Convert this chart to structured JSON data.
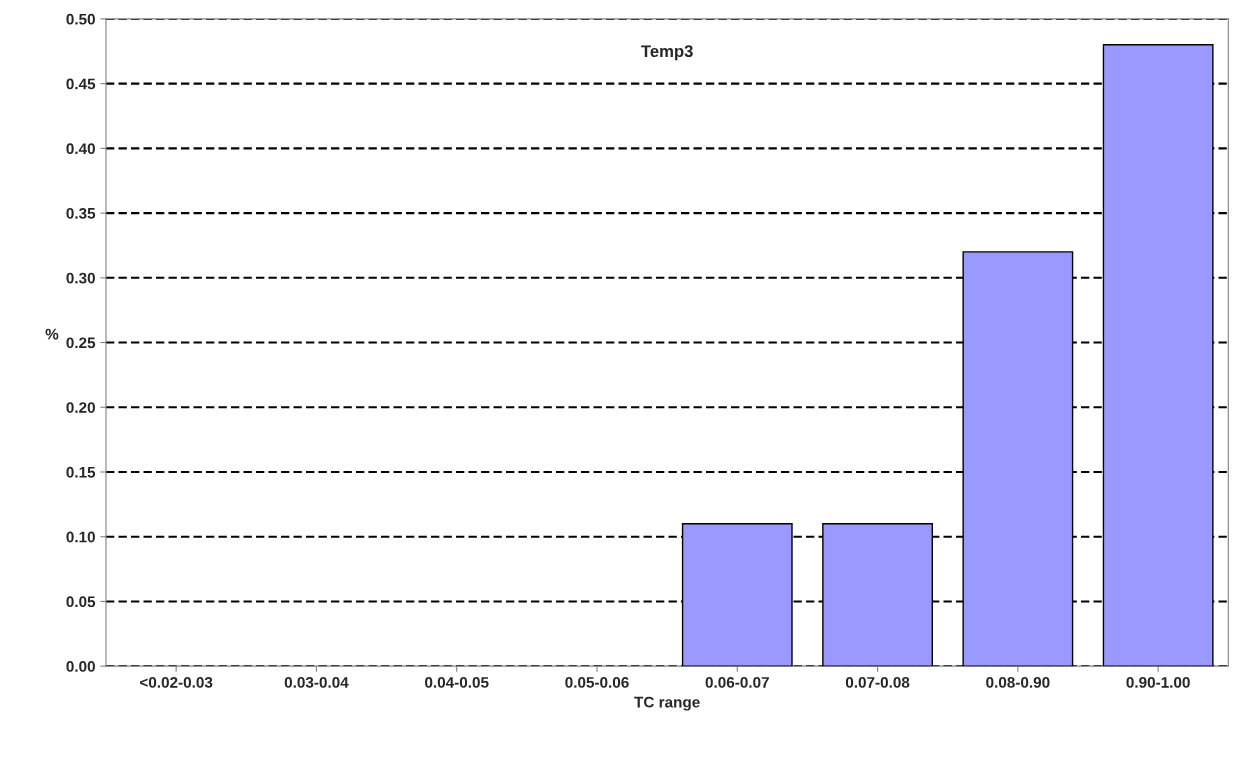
{
  "chart_data": {
    "type": "bar",
    "title": "Temp3",
    "xlabel": "TC range",
    "ylabel": "%",
    "categories": [
      "<0.02-0.03",
      "0.03-0.04",
      "0.04-0.05",
      "0.05-0.06",
      "0.06-0.07",
      "0.07-0.08",
      "0.08-0.90",
      "0.90-1.00"
    ],
    "values": [
      null,
      null,
      null,
      null,
      0.11,
      0.11,
      0.32,
      0.48
    ],
    "color": "#9999ff",
    "ylim": [
      0,
      0.5
    ],
    "yticks": [
      {
        "value": 0,
        "label": "0.00"
      },
      {
        "value": 0.05,
        "label": "0.05"
      },
      {
        "value": 0.1,
        "label": "0.10"
      },
      {
        "value": 0.15,
        "label": "0.15"
      },
      {
        "value": 0.2,
        "label": "0.20"
      },
      {
        "value": 0.25,
        "label": "0.25"
      },
      {
        "value": 0.3,
        "label": "0.30"
      },
      {
        "value": 0.35,
        "label": "0.35"
      },
      {
        "value": 0.4,
        "label": "0.40"
      },
      {
        "value": 0.45,
        "label": "0.45"
      },
      {
        "value": 0.5,
        "label": "0.50"
      }
    ],
    "grid": "y"
  }
}
